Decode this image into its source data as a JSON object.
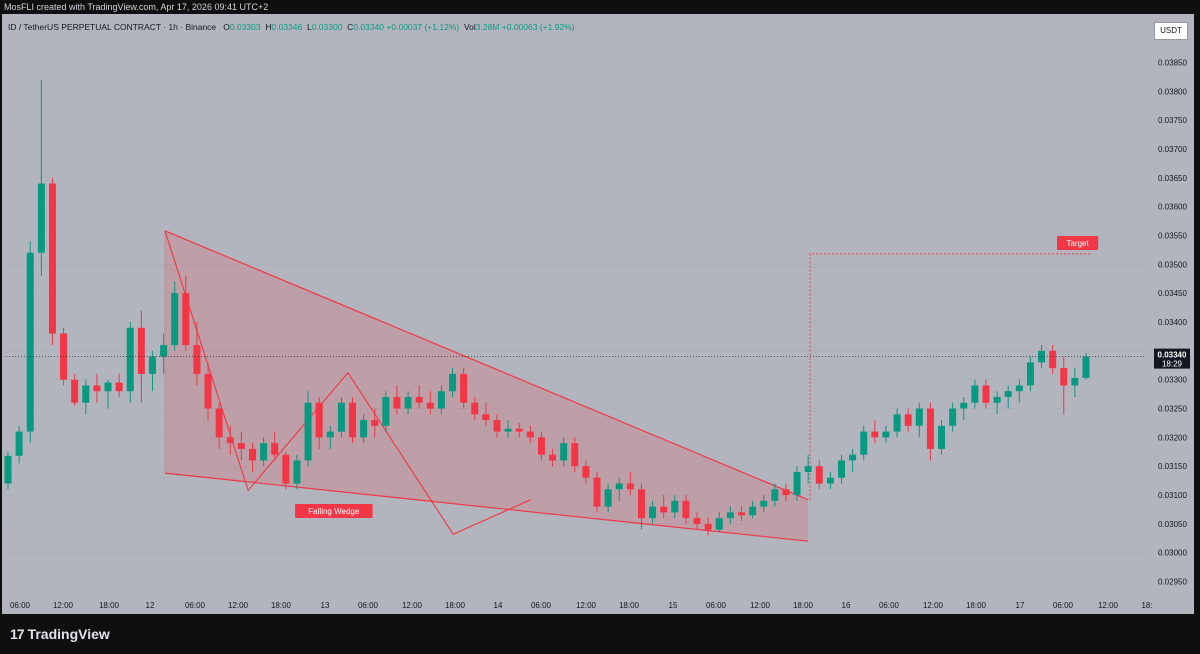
{
  "header": {
    "created_by": "MosFLI created with TradingView.com, Apr 17, 2026 09:41 UTC+2"
  },
  "legend": {
    "symbol": "ID / TetherUS PERPETUAL CONTRACT · 1h · Binance",
    "o_label": "O",
    "o": "0.03303",
    "h_label": "H",
    "h": "0.03346",
    "l_label": "L",
    "l": "0.03300",
    "c_label": "C",
    "c": "0.03340",
    "change": "+0.00037 (+1.12%)",
    "vol_label": "Vol",
    "vol": "3.28M",
    "vol_change": "+0.00063 (+1.92%)"
  },
  "currency_button": "USDT",
  "price_tag": {
    "price": "0.03340",
    "countdown": "18:29"
  },
  "brand": {
    "name": "TradingView",
    "mark": "17"
  },
  "colors": {
    "up": "#089981",
    "down": "#f23645",
    "background": "#b2b5be",
    "pattern": "#f23645"
  },
  "chart_data": {
    "type": "candlestick",
    "ylim": [
      0.02925,
      0.03875
    ],
    "y_ticks": [
      "0.02950",
      "0.03000",
      "0.03050",
      "0.03100",
      "0.03150",
      "0.03200",
      "0.03250",
      "0.03300",
      "0.03350",
      "0.03400",
      "0.03450",
      "0.03500",
      "0.03550",
      "0.03600",
      "0.03650",
      "0.03700",
      "0.03750",
      "0.03800",
      "0.03850"
    ],
    "x_ticks": [
      "06:00",
      "12:00",
      "18:00",
      "12",
      "06:00",
      "12:00",
      "18:00",
      "13",
      "06:00",
      "12:00",
      "18:00",
      "14",
      "06:00",
      "12:00",
      "18:00",
      "15",
      "06:00",
      "12:00",
      "18:00",
      "16",
      "06:00",
      "12:00",
      "18:00",
      "17",
      "06:00",
      "12:00",
      "18:"
    ],
    "last_price": 0.0334,
    "annotations": [
      {
        "label": "Falling Wedge",
        "type": "pattern"
      },
      {
        "label": "Target",
        "price": 0.03518
      }
    ],
    "wedge": {
      "upper": [
        [
          7,
          0.03558
        ],
        [
          123,
          0.03092
        ]
      ],
      "lower": [
        [
          7,
          0.03138
        ],
        [
          123,
          0.0302
        ]
      ],
      "zigzag": [
        [
          7,
          0.03558
        ],
        [
          22,
          0.03108
        ],
        [
          40,
          0.03312
        ],
        [
          59,
          0.03032
        ],
        [
          73,
          0.03092
        ]
      ]
    },
    "target_line": {
      "start_index": 123,
      "price": 0.03518
    },
    "candles": [
      [
        0.0312,
        0.03175,
        0.0311,
        0.03168
      ],
      [
        0.03168,
        0.0322,
        0.03155,
        0.0321
      ],
      [
        0.0321,
        0.0354,
        0.0319,
        0.0352
      ],
      [
        0.0352,
        0.0382,
        0.0348,
        0.0364
      ],
      [
        0.0364,
        0.0365,
        0.0336,
        0.0338
      ],
      [
        0.0338,
        0.0339,
        0.0329,
        0.033
      ],
      [
        0.033,
        0.0331,
        0.03255,
        0.0326
      ],
      [
        0.0326,
        0.033,
        0.0324,
        0.0329
      ],
      [
        0.0329,
        0.0331,
        0.0326,
        0.0328
      ],
      [
        0.0328,
        0.033,
        0.0325,
        0.03295
      ],
      [
        0.03295,
        0.0331,
        0.0327,
        0.0328
      ],
      [
        0.0328,
        0.034,
        0.0326,
        0.0339
      ],
      [
        0.0339,
        0.0342,
        0.0326,
        0.0331
      ],
      [
        0.0331,
        0.0335,
        0.0328,
        0.0334
      ],
      [
        0.0334,
        0.0338,
        0.0331,
        0.0336
      ],
      [
        0.0336,
        0.0347,
        0.0335,
        0.0345
      ],
      [
        0.0345,
        0.0348,
        0.0335,
        0.0336
      ],
      [
        0.0336,
        0.034,
        0.0329,
        0.0331
      ],
      [
        0.0331,
        0.0333,
        0.0323,
        0.0325
      ],
      [
        0.0325,
        0.0326,
        0.0318,
        0.032
      ],
      [
        0.032,
        0.0322,
        0.0317,
        0.0319
      ],
      [
        0.0319,
        0.0321,
        0.0316,
        0.0318
      ],
      [
        0.0318,
        0.0319,
        0.0314,
        0.0316
      ],
      [
        0.0316,
        0.032,
        0.0315,
        0.0319
      ],
      [
        0.0319,
        0.0321,
        0.0316,
        0.0317
      ],
      [
        0.0317,
        0.03175,
        0.0311,
        0.0312
      ],
      [
        0.0312,
        0.0317,
        0.0311,
        0.0316
      ],
      [
        0.0316,
        0.0328,
        0.0315,
        0.0326
      ],
      [
        0.0326,
        0.0327,
        0.0318,
        0.032
      ],
      [
        0.032,
        0.0322,
        0.0318,
        0.0321
      ],
      [
        0.0321,
        0.0327,
        0.032,
        0.0326
      ],
      [
        0.0326,
        0.0327,
        0.0319,
        0.032
      ],
      [
        0.032,
        0.0324,
        0.0319,
        0.0323
      ],
      [
        0.0323,
        0.0325,
        0.032,
        0.0322
      ],
      [
        0.0322,
        0.0328,
        0.0321,
        0.0327
      ],
      [
        0.0327,
        0.0329,
        0.0324,
        0.0325
      ],
      [
        0.0325,
        0.0328,
        0.0324,
        0.0327
      ],
      [
        0.0327,
        0.0329,
        0.0325,
        0.0326
      ],
      [
        0.0326,
        0.0328,
        0.0324,
        0.0325
      ],
      [
        0.0325,
        0.0329,
        0.0324,
        0.0328
      ],
      [
        0.0328,
        0.0332,
        0.0327,
        0.0331
      ],
      [
        0.0331,
        0.0332,
        0.0325,
        0.0326
      ],
      [
        0.0326,
        0.0327,
        0.0323,
        0.0324
      ],
      [
        0.0324,
        0.0326,
        0.0322,
        0.0323
      ],
      [
        0.0323,
        0.0324,
        0.032,
        0.0321
      ],
      [
        0.0321,
        0.0323,
        0.032,
        0.03215
      ],
      [
        0.03215,
        0.03225,
        0.032,
        0.0321
      ],
      [
        0.0321,
        0.0322,
        0.0319,
        0.032
      ],
      [
        0.032,
        0.0321,
        0.0316,
        0.0317
      ],
      [
        0.0317,
        0.0318,
        0.0315,
        0.0316
      ],
      [
        0.0316,
        0.032,
        0.0315,
        0.0319
      ],
      [
        0.0319,
        0.032,
        0.0314,
        0.0315
      ],
      [
        0.0315,
        0.0316,
        0.0312,
        0.0313
      ],
      [
        0.0313,
        0.0314,
        0.0307,
        0.0308
      ],
      [
        0.0308,
        0.0312,
        0.0307,
        0.0311
      ],
      [
        0.0311,
        0.0313,
        0.0309,
        0.0312
      ],
      [
        0.0312,
        0.0314,
        0.031,
        0.0311
      ],
      [
        0.0311,
        0.0312,
        0.0304,
        0.0306
      ],
      [
        0.0306,
        0.0309,
        0.0305,
        0.0308
      ],
      [
        0.0308,
        0.031,
        0.0306,
        0.0307
      ],
      [
        0.0307,
        0.031,
        0.0306,
        0.0309
      ],
      [
        0.0309,
        0.031,
        0.0305,
        0.0306
      ],
      [
        0.0306,
        0.0307,
        0.0304,
        0.0305
      ],
      [
        0.0305,
        0.0306,
        0.0303,
        0.0304
      ],
      [
        0.0304,
        0.0307,
        0.03035,
        0.0306
      ],
      [
        0.0306,
        0.0308,
        0.0305,
        0.0307
      ],
      [
        0.0307,
        0.0308,
        0.03055,
        0.03065
      ],
      [
        0.03065,
        0.0309,
        0.0306,
        0.0308
      ],
      [
        0.0308,
        0.031,
        0.0307,
        0.0309
      ],
      [
        0.0309,
        0.0312,
        0.0308,
        0.0311
      ],
      [
        0.0311,
        0.0312,
        0.0309,
        0.031
      ],
      [
        0.031,
        0.0315,
        0.0309,
        0.0314
      ],
      [
        0.0314,
        0.0317,
        0.0312,
        0.0315
      ],
      [
        0.0315,
        0.0316,
        0.0311,
        0.0312
      ],
      [
        0.0312,
        0.0314,
        0.0311,
        0.0313
      ],
      [
        0.0313,
        0.0317,
        0.0312,
        0.0316
      ],
      [
        0.0316,
        0.0318,
        0.0314,
        0.0317
      ],
      [
        0.0317,
        0.0322,
        0.0316,
        0.0321
      ],
      [
        0.0321,
        0.0323,
        0.0319,
        0.032
      ],
      [
        0.032,
        0.0322,
        0.0319,
        0.0321
      ],
      [
        0.0321,
        0.0325,
        0.032,
        0.0324
      ],
      [
        0.0324,
        0.0325,
        0.0321,
        0.0322
      ],
      [
        0.0322,
        0.0326,
        0.032,
        0.0325
      ],
      [
        0.0325,
        0.0326,
        0.0316,
        0.0318
      ],
      [
        0.0318,
        0.0323,
        0.0317,
        0.0322
      ],
      [
        0.0322,
        0.0326,
        0.0321,
        0.0325
      ],
      [
        0.0325,
        0.0327,
        0.0323,
        0.0326
      ],
      [
        0.0326,
        0.033,
        0.0325,
        0.0329
      ],
      [
        0.0329,
        0.033,
        0.0325,
        0.0326
      ],
      [
        0.0326,
        0.0328,
        0.0324,
        0.0327
      ],
      [
        0.0327,
        0.0329,
        0.0325,
        0.0328
      ],
      [
        0.0328,
        0.033,
        0.0326,
        0.0329
      ],
      [
        0.0329,
        0.0334,
        0.0328,
        0.0333
      ],
      [
        0.0333,
        0.0336,
        0.0332,
        0.0335
      ],
      [
        0.0335,
        0.0336,
        0.0331,
        0.0332
      ],
      [
        0.0332,
        0.0334,
        0.0324,
        0.0329
      ],
      [
        0.0329,
        0.0332,
        0.0327,
        0.03303
      ],
      [
        0.03303,
        0.03346,
        0.033,
        0.0334
      ]
    ]
  }
}
